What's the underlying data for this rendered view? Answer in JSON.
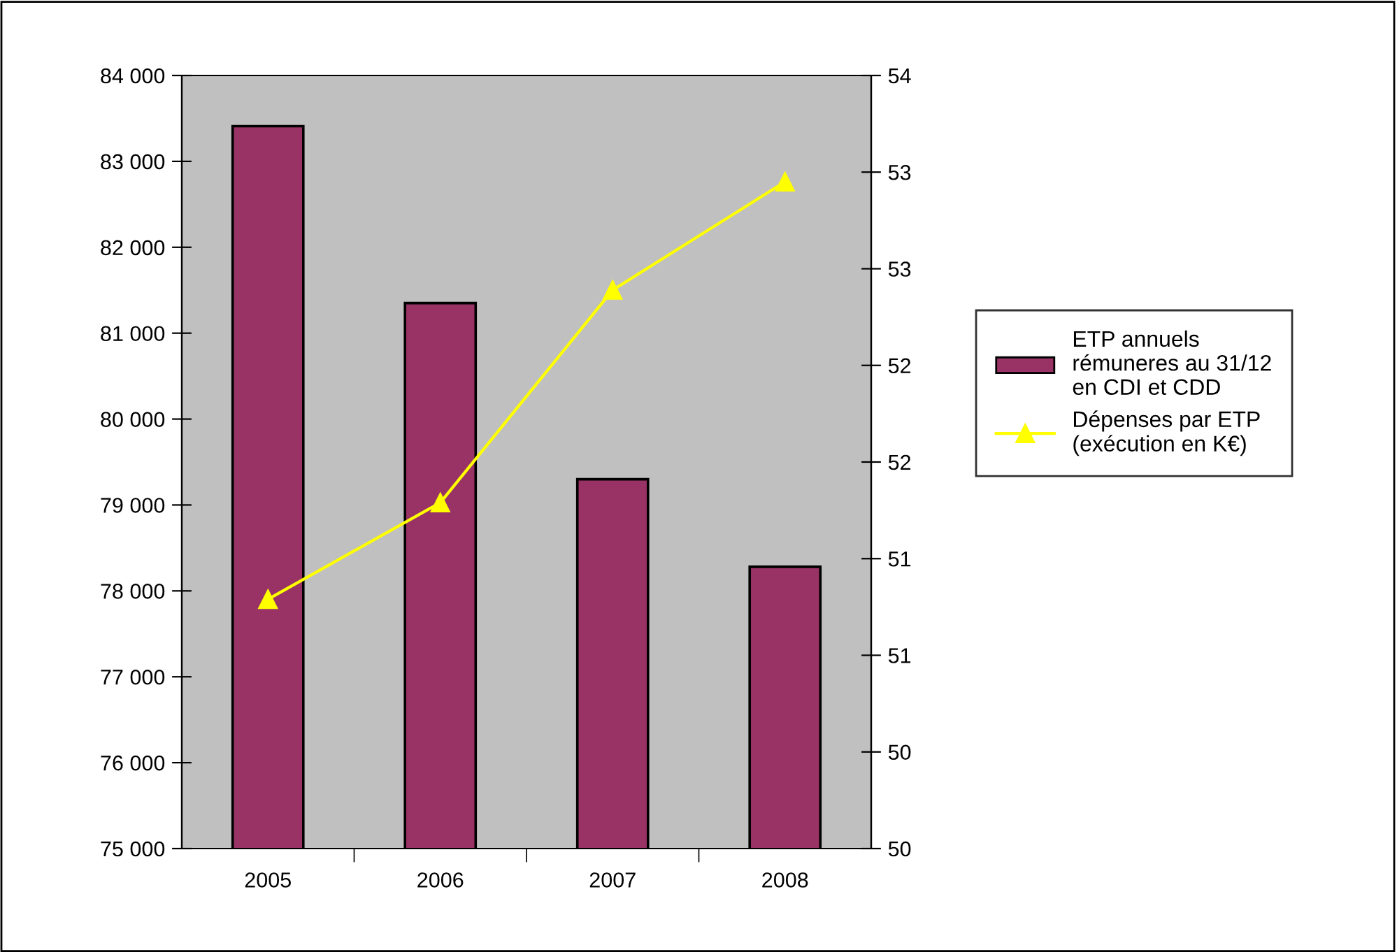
{
  "chart_data": {
    "type": "bar",
    "categories": [
      "2005",
      "2006",
      "2007",
      "2008"
    ],
    "series": [
      {
        "name": "ETP annuels\nrémuneres au 31/12\nen CDI et CDD",
        "color": "#993366",
        "values": [
          83410,
          81350,
          79300,
          78280
        ]
      },
      {
        "name": "Dépenses par ETP\n(exécution en K€)",
        "type": "line",
        "axis": "y2",
        "color": "#ffff00",
        "marker": "triangle",
        "values": [
          51.29,
          51.79,
          52.89,
          53.45
        ]
      }
    ],
    "ylim": [
      75000,
      84000
    ],
    "yticks": [
      {
        "value": 75000,
        "label": "75 000"
      },
      {
        "value": 76000,
        "label": "76 000"
      },
      {
        "value": 77000,
        "label": "77 000"
      },
      {
        "value": 78000,
        "label": "78 000"
      },
      {
        "value": 79000,
        "label": "79 000"
      },
      {
        "value": 80000,
        "label": "80 000"
      },
      {
        "value": 81000,
        "label": "81 000"
      },
      {
        "value": 82000,
        "label": "82 000"
      },
      {
        "value": 83000,
        "label": "83 000"
      },
      {
        "value": 84000,
        "label": "84 000"
      }
    ],
    "y2lim": [
      50,
      54
    ],
    "y2ticks": [
      50,
      {
        "value": 50.5,
        "label": "50"
      },
      51,
      {
        "value": 51.5,
        "label": "51"
      },
      52,
      {
        "value": 52.5,
        "label": "52"
      },
      53,
      {
        "value": 53.5,
        "label": "53"
      },
      54
    ],
    "grid": false,
    "legend": "right"
  }
}
